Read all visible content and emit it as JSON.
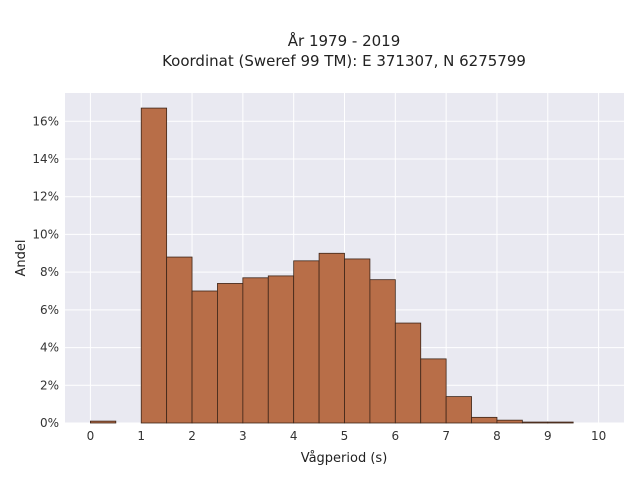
{
  "chart_data": {
    "type": "bar",
    "title_line1": "År 1979 - 2019",
    "title_line2": "Koordinat (Sweref 99 TM): E 371307, N 6275799",
    "xlabel": "Vågperiod (s)",
    "ylabel": "Andel",
    "xlim": [
      -0.5,
      10.5
    ],
    "ylim": [
      0,
      17.5
    ],
    "x_ticks": [
      0,
      1,
      2,
      3,
      4,
      5,
      6,
      7,
      8,
      9,
      10
    ],
    "x_tick_labels": [
      "0",
      "1",
      "2",
      "3",
      "4",
      "5",
      "6",
      "7",
      "8",
      "9",
      "10"
    ],
    "y_ticks": [
      0,
      2,
      4,
      6,
      8,
      10,
      12,
      14,
      16
    ],
    "y_tick_labels": [
      "0%",
      "2%",
      "4%",
      "6%",
      "8%",
      "10%",
      "12%",
      "14%",
      "16%"
    ],
    "grid": true,
    "bar_color": "#b86e48",
    "bar_edge_color": "#3d2518",
    "background_color": "#e9e9f1",
    "bins": [
      {
        "x0": 0.0,
        "x1": 0.5,
        "value": 0.1
      },
      {
        "x0": 0.5,
        "x1": 1.0,
        "value": 0.0
      },
      {
        "x0": 1.0,
        "x1": 1.5,
        "value": 16.7
      },
      {
        "x0": 1.5,
        "x1": 2.0,
        "value": 8.8
      },
      {
        "x0": 2.0,
        "x1": 2.5,
        "value": 7.0
      },
      {
        "x0": 2.5,
        "x1": 3.0,
        "value": 7.4
      },
      {
        "x0": 3.0,
        "x1": 3.5,
        "value": 7.7
      },
      {
        "x0": 3.5,
        "x1": 4.0,
        "value": 7.8
      },
      {
        "x0": 4.0,
        "x1": 4.5,
        "value": 8.6
      },
      {
        "x0": 4.5,
        "x1": 5.0,
        "value": 9.0
      },
      {
        "x0": 5.0,
        "x1": 5.5,
        "value": 8.7
      },
      {
        "x0": 5.5,
        "x1": 6.0,
        "value": 7.6
      },
      {
        "x0": 6.0,
        "x1": 6.5,
        "value": 5.3
      },
      {
        "x0": 6.5,
        "x1": 7.0,
        "value": 3.4
      },
      {
        "x0": 7.0,
        "x1": 7.5,
        "value": 1.4
      },
      {
        "x0": 7.5,
        "x1": 8.0,
        "value": 0.3
      },
      {
        "x0": 8.0,
        "x1": 8.5,
        "value": 0.15
      },
      {
        "x0": 8.5,
        "x1": 9.0,
        "value": 0.05
      },
      {
        "x0": 9.0,
        "x1": 9.5,
        "value": 0.05
      },
      {
        "x0": 9.5,
        "x1": 10.0,
        "value": 0.0
      }
    ]
  }
}
